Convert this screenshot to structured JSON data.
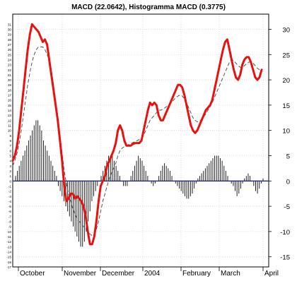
{
  "chart_data": {
    "type": "line",
    "title": "MACD (22.0642), Histogramma MACD (0.3775)",
    "xlabel": "",
    "ylabel": "",
    "x_tick_labels": [
      "October",
      "November",
      "December",
      "2004",
      "February",
      "March",
      "April"
    ],
    "y_right_ticks": [
      30,
      25,
      20,
      15,
      10,
      5,
      0,
      -5,
      -10,
      -15
    ],
    "y_left_ticks": [
      31,
      30,
      29,
      28,
      27,
      26,
      25,
      24,
      23,
      22,
      21,
      20,
      19,
      18,
      17,
      16,
      15,
      14,
      13,
      12,
      11,
      10,
      9,
      8,
      7,
      6,
      5,
      4,
      3,
      2,
      1,
      0,
      -1,
      -2,
      -3,
      -4,
      -5,
      -6,
      -7,
      -8,
      -9,
      -10,
      -11,
      -12,
      -13,
      -14,
      -15,
      -16,
      -17
    ],
    "ylim": [
      -17,
      33
    ],
    "grid": true,
    "colors": {
      "macd": "#e8110f",
      "signal": "#555555",
      "histogram": "#222222",
      "zero_line": "#1c2b8c",
      "grid": "#d6d6d6"
    },
    "series": [
      {
        "style": "solid-thick",
        "values": [
          4,
          5,
          7,
          10,
          14,
          18,
          22,
          26,
          29,
          31,
          30.5,
          30,
          29.5,
          28.5,
          27.5,
          28,
          27,
          24,
          21,
          18,
          15,
          12,
          8,
          4,
          -1,
          -4,
          -3.5,
          -2.5,
          -2.5,
          -3.5,
          -3,
          -3.5,
          -4,
          -5,
          -7,
          -10,
          -12.5,
          -12.5,
          -11,
          -8,
          -4,
          -1,
          0,
          1,
          3,
          4,
          5,
          6,
          7.5,
          10,
          11,
          10,
          8,
          7,
          7,
          7,
          7.3,
          7.5,
          7.5,
          7.5,
          8,
          10,
          12,
          14,
          15.5,
          15,
          15.5,
          15,
          13,
          12,
          12,
          13,
          14,
          15,
          16,
          17,
          18,
          19,
          19,
          18.5,
          17,
          15,
          13,
          11,
          10,
          9.5,
          10,
          11,
          12,
          13,
          14,
          14.5,
          15,
          16,
          18,
          20,
          22,
          24,
          26,
          27.5,
          28,
          26,
          24,
          22,
          20.5,
          20,
          21,
          23,
          24,
          24.5,
          24.5,
          23.5,
          22,
          20.5,
          20,
          20.5,
          22
        ]
      },
      {
        "style": "dashed",
        "values": [
          3,
          4,
          5.5,
          7.5,
          10,
          13,
          16,
          19,
          21.5,
          23.5,
          25,
          26,
          26.5,
          26.5,
          26.5,
          26,
          25,
          24,
          22,
          19,
          16,
          12.5,
          9,
          5.5,
          2,
          -0.5,
          -2.5,
          -4,
          -5.5,
          -6.5,
          -7.5,
          -8,
          -8.5,
          -9,
          -9.5,
          -10,
          -10.5,
          -10.8,
          -10.5,
          -9.5,
          -8,
          -6,
          -4,
          -2.5,
          -1,
          0.5,
          1.5,
          2.5,
          3.5,
          5,
          6,
          6.5,
          6.8,
          7,
          7.2,
          7.4,
          7.6,
          7.8,
          8,
          8.2,
          8.5,
          9,
          10,
          11,
          12,
          12.5,
          13,
          13.5,
          14,
          14,
          14.2,
          14.5,
          14.8,
          15,
          15.5,
          16,
          16.5,
          16.8,
          17,
          16.8,
          16.3,
          15.5,
          14.5,
          13.5,
          12.5,
          12,
          11.7,
          11.8,
          12.2,
          12.7,
          13.3,
          14,
          14.7,
          15.5,
          16.5,
          17.5,
          18.5,
          19.5,
          20.5,
          21.5,
          22.5,
          23.5,
          24,
          23.8,
          23.3,
          22.8,
          22.5,
          22.5,
          22.8,
          23.2,
          23.5,
          23.5,
          23.3,
          22.8,
          22.3,
          22,
          22
        ]
      },
      {
        "style": "histogram",
        "values": [
          1,
          2,
          3,
          4,
          5,
          6,
          7,
          8,
          9,
          10,
          11,
          12,
          12,
          11,
          10,
          8,
          7,
          6,
          5,
          4,
          3,
          2,
          1,
          -1,
          -2,
          -3,
          -4,
          -5,
          -6,
          -7,
          -8,
          -9,
          -10,
          -11,
          -12,
          -13,
          -13,
          -12,
          -10,
          -8,
          -6,
          -4,
          -3,
          -2,
          -1,
          0,
          1,
          2,
          3,
          4,
          5,
          5,
          5,
          4,
          3,
          2,
          1,
          0,
          -1,
          -1,
          -1,
          0,
          1,
          2,
          3,
          4,
          5,
          4.5,
          4,
          3,
          2,
          1,
          0,
          -0.5,
          -1,
          -0.5,
          0,
          1,
          2,
          3,
          3.5,
          3,
          2.5,
          2,
          1,
          0,
          -0.5,
          -1,
          -1.5,
          -2,
          -2.5,
          -3,
          -3.5,
          -3.5,
          -3,
          -2.5,
          -1.5,
          -0.5,
          0.5,
          1,
          1.5,
          2,
          2.5,
          3,
          3.5,
          4,
          4.5,
          5,
          5,
          5,
          4.5,
          4,
          3,
          2,
          1,
          0,
          -0.5,
          -1,
          -2,
          -3,
          -2.5,
          -1.5,
          -0.5,
          0.5,
          1,
          1.5,
          1,
          0,
          -1,
          -2,
          -2.5,
          -1.5,
          -0.5,
          0.5
        ]
      }
    ]
  }
}
